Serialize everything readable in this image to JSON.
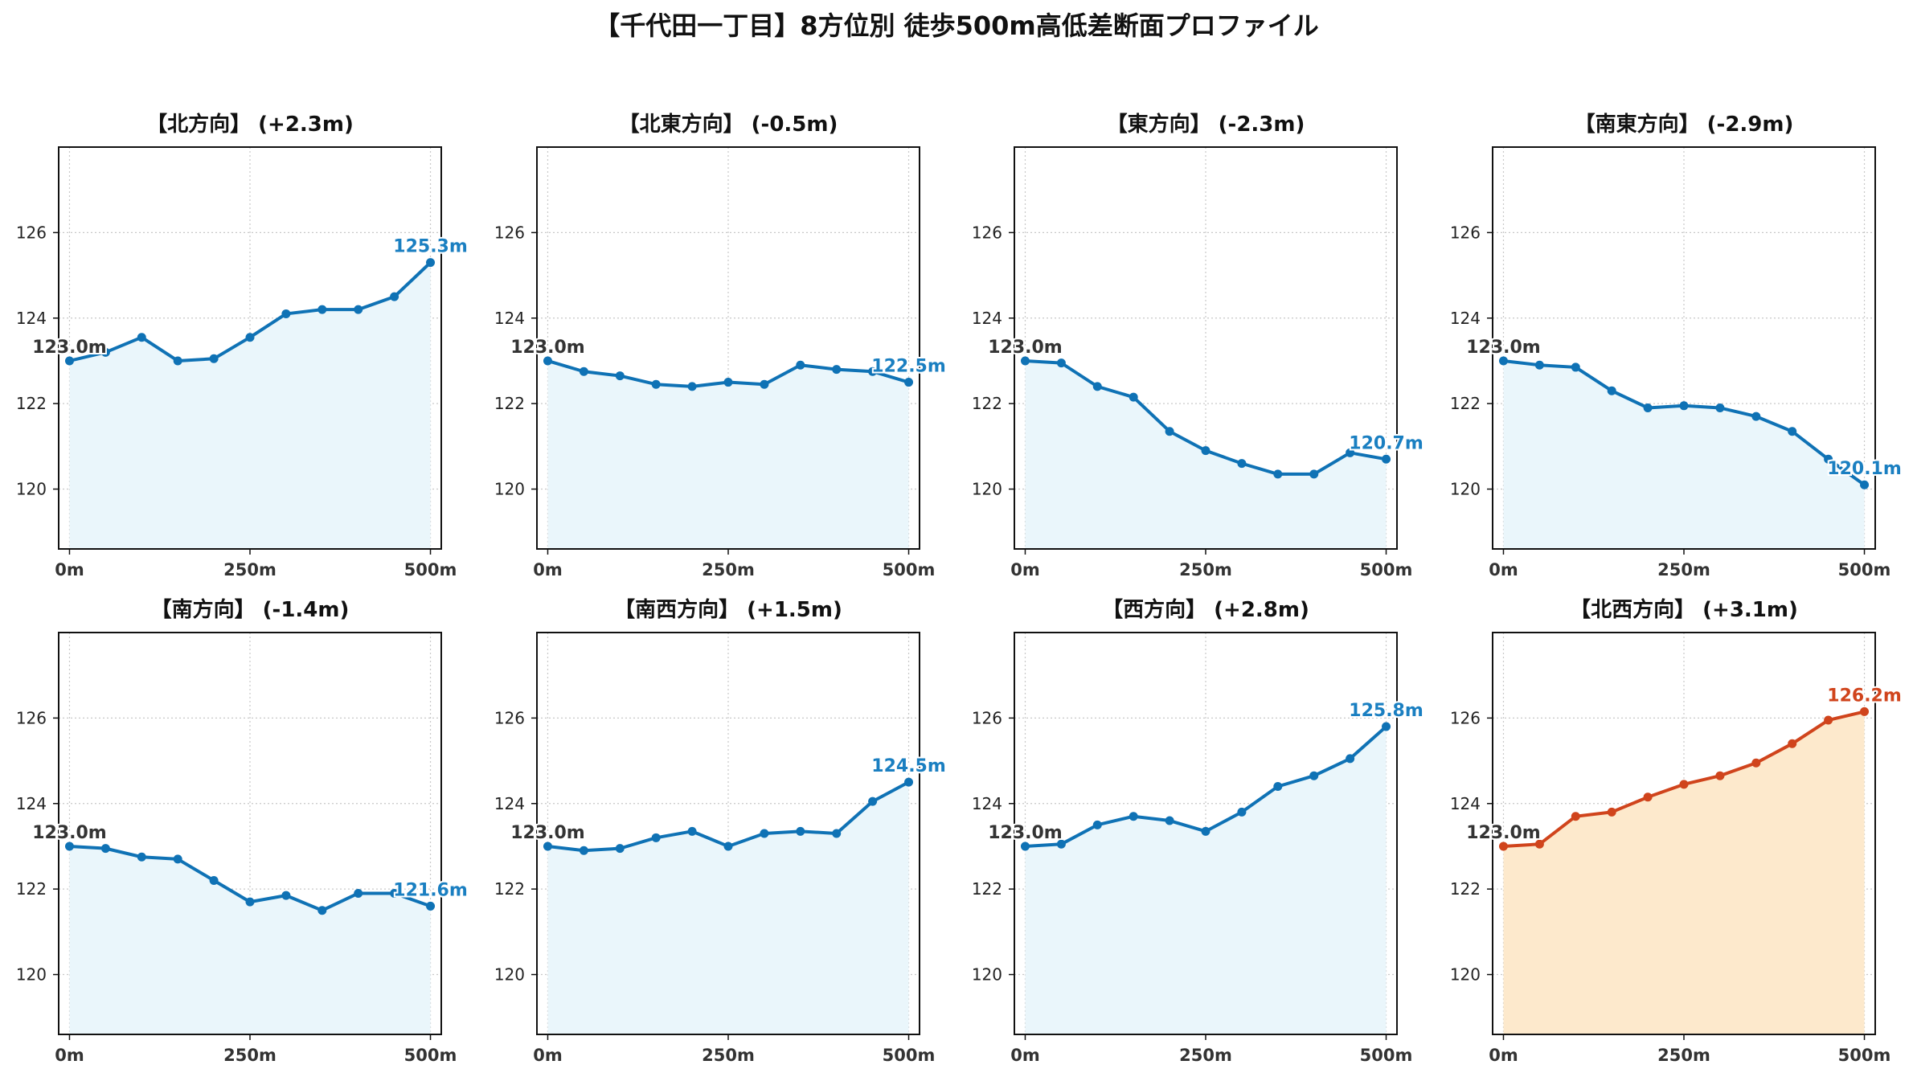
{
  "figure": {
    "title": "【千代田一丁目】8方位別 徒歩500m高低差断面プロファイル"
  },
  "colors": {
    "normal_line": "#0f72b5",
    "normal_fill": "#eaf6fb",
    "normal_end_label": "#1a7fc1",
    "highlight_line": "#d0441c",
    "highlight_fill": "#fde9cc",
    "highlight_end_label": "#d0441c",
    "start_label": "#333333",
    "grid": "#c8c8c8"
  },
  "chart_data": [
    {
      "type": "area",
      "title": "【北方向】 (+2.3m)",
      "x": [
        0,
        50,
        100,
        150,
        200,
        250,
        300,
        350,
        400,
        450,
        500
      ],
      "y": [
        123.0,
        123.2,
        123.55,
        123.0,
        123.05,
        123.55,
        124.1,
        124.2,
        124.2,
        124.5,
        125.3
      ],
      "start_label": "123.0m",
      "end_label": "125.3m",
      "highlight": false,
      "xticks": [
        "0m",
        "250m",
        "500m"
      ],
      "yticks": [
        "120",
        "122",
        "124",
        "126"
      ],
      "ylim": [
        118.6,
        128.0
      ],
      "xlim": [
        -15,
        515
      ],
      "grid": true
    },
    {
      "type": "area",
      "title": "【北東方向】 (-0.5m)",
      "x": [
        0,
        50,
        100,
        150,
        200,
        250,
        300,
        350,
        400,
        450,
        500
      ],
      "y": [
        123.0,
        122.75,
        122.65,
        122.45,
        122.4,
        122.5,
        122.45,
        122.9,
        122.8,
        122.75,
        122.5
      ],
      "start_label": "123.0m",
      "end_label": "122.5m",
      "highlight": false,
      "xticks": [
        "0m",
        "250m",
        "500m"
      ],
      "yticks": [
        "120",
        "122",
        "124",
        "126"
      ],
      "ylim": [
        118.6,
        128.0
      ],
      "xlim": [
        -15,
        515
      ],
      "grid": true
    },
    {
      "type": "area",
      "title": "【東方向】 (-2.3m)",
      "x": [
        0,
        50,
        100,
        150,
        200,
        250,
        300,
        350,
        400,
        450,
        500
      ],
      "y": [
        123.0,
        122.95,
        122.4,
        122.15,
        121.35,
        120.9,
        120.6,
        120.35,
        120.35,
        120.85,
        120.7
      ],
      "start_label": "123.0m",
      "end_label": "120.7m",
      "highlight": false,
      "xticks": [
        "0m",
        "250m",
        "500m"
      ],
      "yticks": [
        "120",
        "122",
        "124",
        "126"
      ],
      "ylim": [
        118.6,
        128.0
      ],
      "xlim": [
        -15,
        515
      ],
      "grid": true
    },
    {
      "type": "area",
      "title": "【南東方向】 (-2.9m)",
      "x": [
        0,
        50,
        100,
        150,
        200,
        250,
        300,
        350,
        400,
        450,
        500
      ],
      "y": [
        123.0,
        122.9,
        122.85,
        122.3,
        121.9,
        121.95,
        121.9,
        121.7,
        121.35,
        120.7,
        120.1
      ],
      "start_label": "123.0m",
      "end_label": "120.1m",
      "highlight": false,
      "xticks": [
        "0m",
        "250m",
        "500m"
      ],
      "yticks": [
        "120",
        "122",
        "124",
        "126"
      ],
      "ylim": [
        118.6,
        128.0
      ],
      "xlim": [
        -15,
        515
      ],
      "grid": true
    },
    {
      "type": "area",
      "title": "【南方向】 (-1.4m)",
      "x": [
        0,
        50,
        100,
        150,
        200,
        250,
        300,
        350,
        400,
        450,
        500
      ],
      "y": [
        123.0,
        122.95,
        122.75,
        122.7,
        122.2,
        121.7,
        121.85,
        121.5,
        121.9,
        121.9,
        121.6
      ],
      "start_label": "123.0m",
      "end_label": "121.6m",
      "highlight": false,
      "xticks": [
        "0m",
        "250m",
        "500m"
      ],
      "yticks": [
        "120",
        "122",
        "124",
        "126"
      ],
      "ylim": [
        118.6,
        128.0
      ],
      "xlim": [
        -15,
        515
      ],
      "grid": true
    },
    {
      "type": "area",
      "title": "【南西方向】 (+1.5m)",
      "x": [
        0,
        50,
        100,
        150,
        200,
        250,
        300,
        350,
        400,
        450,
        500
      ],
      "y": [
        123.0,
        122.9,
        122.95,
        123.2,
        123.35,
        123.0,
        123.3,
        123.35,
        123.3,
        124.05,
        124.5
      ],
      "start_label": "123.0m",
      "end_label": "124.5m",
      "highlight": false,
      "xticks": [
        "0m",
        "250m",
        "500m"
      ],
      "yticks": [
        "120",
        "122",
        "124",
        "126"
      ],
      "ylim": [
        118.6,
        128.0
      ],
      "xlim": [
        -15,
        515
      ],
      "grid": true
    },
    {
      "type": "area",
      "title": "【西方向】 (+2.8m)",
      "x": [
        0,
        50,
        100,
        150,
        200,
        250,
        300,
        350,
        400,
        450,
        500
      ],
      "y": [
        123.0,
        123.05,
        123.5,
        123.7,
        123.6,
        123.35,
        123.8,
        124.4,
        124.65,
        125.05,
        125.8
      ],
      "start_label": "123.0m",
      "end_label": "125.8m",
      "highlight": false,
      "xticks": [
        "0m",
        "250m",
        "500m"
      ],
      "yticks": [
        "120",
        "122",
        "124",
        "126"
      ],
      "ylim": [
        118.6,
        128.0
      ],
      "xlim": [
        -15,
        515
      ],
      "grid": true
    },
    {
      "type": "area",
      "title": "【北西方向】 (+3.1m)",
      "x": [
        0,
        50,
        100,
        150,
        200,
        250,
        300,
        350,
        400,
        450,
        500
      ],
      "y": [
        123.0,
        123.05,
        123.7,
        123.8,
        124.15,
        124.45,
        124.65,
        124.95,
        125.4,
        125.95,
        126.15
      ],
      "start_label": "123.0m",
      "end_label": "126.2m",
      "highlight": true,
      "xticks": [
        "0m",
        "250m",
        "500m"
      ],
      "yticks": [
        "120",
        "122",
        "124",
        "126"
      ],
      "ylim": [
        118.6,
        128.0
      ],
      "xlim": [
        -15,
        515
      ],
      "grid": true
    }
  ]
}
